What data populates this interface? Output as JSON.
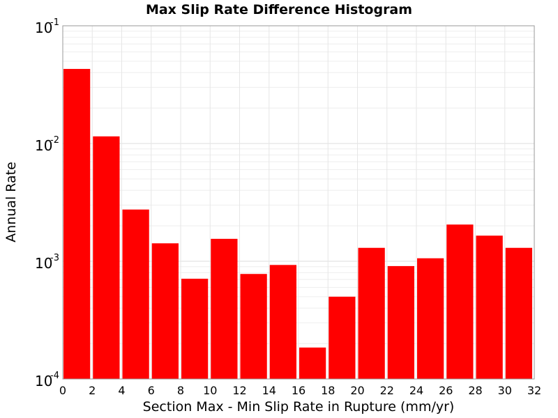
{
  "chart_data": {
    "type": "bar",
    "title": "Max Slip Rate Difference Histogram",
    "xlabel": "Section Max - Min Slip Rate in Rupture (mm/yr)",
    "ylabel": "Annual Rate",
    "xlim": [
      0,
      32
    ],
    "ylim": [
      0.0001,
      0.1
    ],
    "yscale": "log",
    "grid": true,
    "x_ticks": [
      "0",
      "2",
      "4",
      "6",
      "8",
      "10",
      "12",
      "14",
      "16",
      "18",
      "20",
      "22",
      "24",
      "26",
      "28",
      "30",
      "32"
    ],
    "y_ticks": [
      {
        "base": "10",
        "exp": "-4",
        "value": 0.0001
      },
      {
        "base": "10",
        "exp": "-3",
        "value": 0.001
      },
      {
        "base": "10",
        "exp": "-2",
        "value": 0.01
      },
      {
        "base": "10",
        "exp": "-1",
        "value": 0.1
      }
    ],
    "bin_width": 2,
    "bin_starts": [
      0,
      2,
      4,
      6,
      8,
      10,
      12,
      14,
      16,
      18,
      20,
      22,
      24,
      26,
      28,
      30
    ],
    "values": [
      0.043,
      0.0115,
      0.00275,
      0.00142,
      0.00071,
      0.00155,
      0.00078,
      0.00093,
      0.000185,
      0.0005,
      0.0013,
      0.00091,
      0.00106,
      0.00205,
      0.00165,
      0.0013
    ],
    "bar_color": "#ff0000"
  }
}
